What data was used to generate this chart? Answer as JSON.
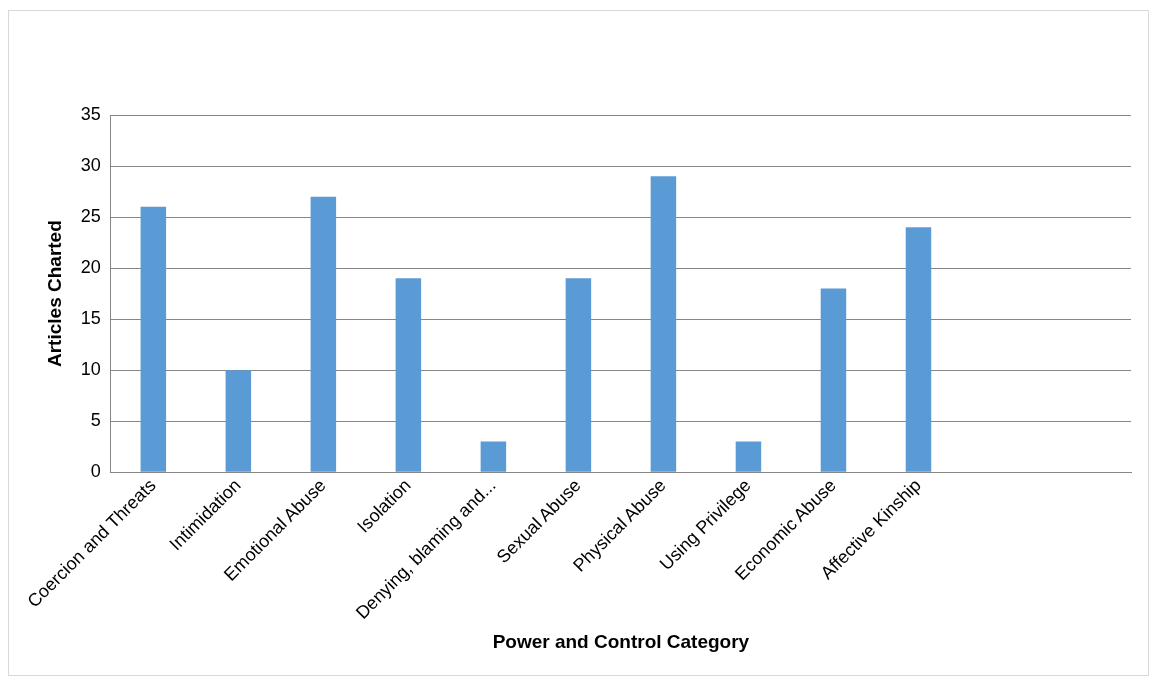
{
  "chart_data": {
    "type": "bar",
    "xlabel": "Power and Control Category",
    "ylabel": "Articles Charted",
    "categories": [
      "Coercion and Threats",
      "Intimidation",
      "Emotional Abuse",
      "Isolation",
      "Denying, blaming and...",
      "Sexual Abuse",
      "Physical Abuse",
      "Using Privilege",
      "Economic Abuse",
      "Affective Kinship",
      null,
      null
    ],
    "values": [
      26,
      10,
      27,
      19,
      3,
      19,
      29,
      3,
      18,
      24,
      null,
      null
    ],
    "color": "#5b9bd5",
    "ylim": [
      0,
      35
    ],
    "yticks": [
      0,
      5,
      10,
      15,
      20,
      25,
      30,
      35
    ],
    "grid": "y",
    "legend": false
  }
}
